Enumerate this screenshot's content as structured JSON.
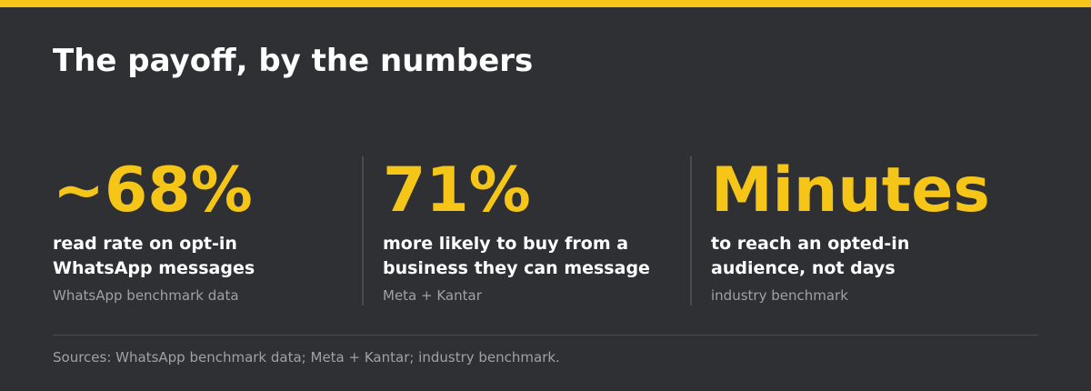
{
  "title": "The payoff, by the numbers",
  "stats": [
    {
      "value": "~68%",
      "description": [
        "read rate on opt-in",
        "WhatsApp messages"
      ],
      "source": "WhatsApp benchmark data"
    },
    {
      "value": "71%",
      "description": [
        "more likely to buy from a",
        "business they can message"
      ],
      "source": "Meta + Kantar"
    },
    {
      "value": "Minutes",
      "description": [
        "to reach an opted-in",
        "audience, not days"
      ],
      "source": "industry benchmark"
    }
  ],
  "footer": "Sources: WhatsApp benchmark data; Meta + Kantar; industry benchmark."
}
